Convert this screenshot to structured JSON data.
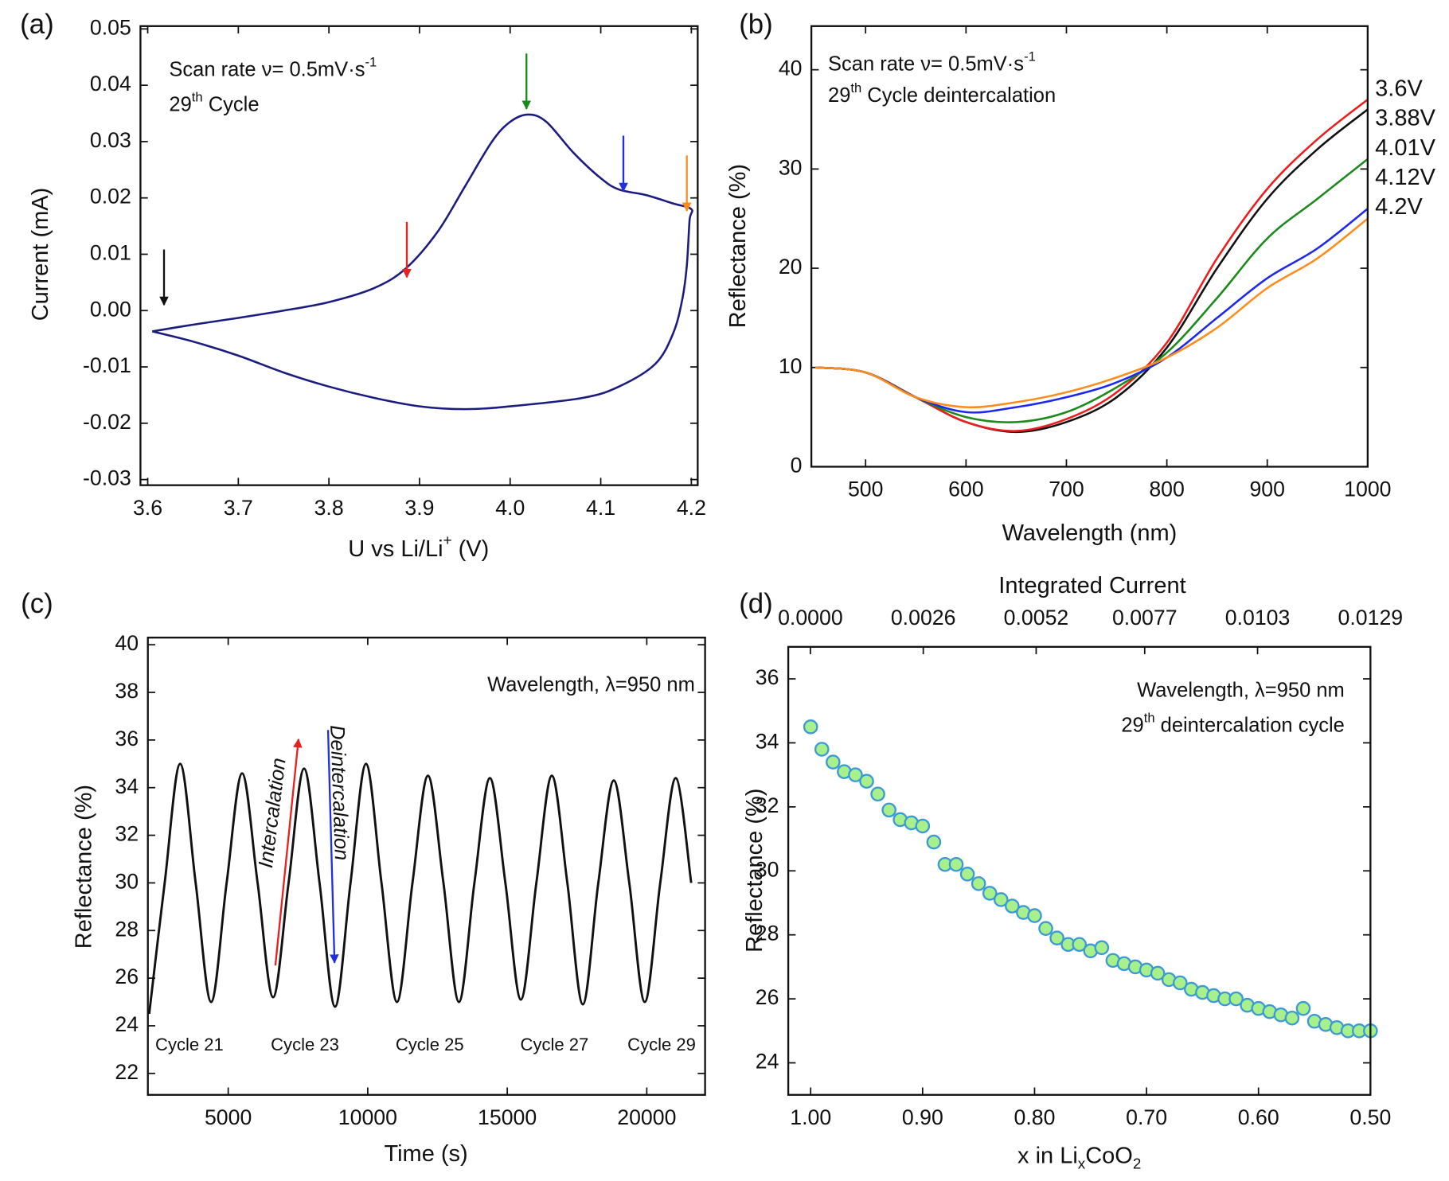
{
  "chart_data": [
    {
      "type": "line",
      "panel_label": "(a)",
      "xlabel": [
        {
          "text": "U vs Li/Li"
        },
        {
          "sup": "+"
        },
        {
          "text": " (V)"
        }
      ],
      "ylabel": "Current (mA)",
      "xlim": [
        3.592,
        4.207
      ],
      "ylim": [
        -0.031,
        0.0505
      ],
      "xticks": [
        3.6,
        3.7,
        3.8,
        3.9,
        {
          "value": 4.0,
          "label": "4.0"
        },
        4.1,
        4.2
      ],
      "yticks": [
        {
          "value": -0.03,
          "label": "-0.03"
        },
        {
          "value": -0.02,
          "label": "-0.02"
        },
        {
          "value": -0.01,
          "label": "-0.01"
        },
        {
          "value": 0,
          "label": "0.00"
        },
        0.01,
        0.02,
        0.03,
        0.04,
        0.05
      ],
      "annotations": [
        [
          {
            "text": "Scan rate ν= 0.5mV·s"
          },
          {
            "sup": "-1"
          }
        ],
        [
          {
            "text": "29"
          },
          {
            "sup": "th"
          },
          {
            "text": " Cycle"
          }
        ]
      ],
      "x": [
        3.605,
        3.65,
        3.7,
        3.75,
        3.8,
        3.85,
        3.885,
        3.92,
        3.95,
        3.98,
        4.0,
        4.02,
        4.04,
        4.07,
        4.1,
        4.12,
        4.15,
        4.18,
        4.2,
        4.198,
        4.195,
        4.19,
        4.18,
        4.16,
        4.12,
        4.08,
        4.0,
        3.95,
        3.9,
        3.85,
        3.8,
        3.75,
        3.7,
        3.65,
        3.605
      ],
      "series": [
        {
          "color": "#1c1c80",
          "values": [
            -0.0037,
            -0.0025,
            -0.0013,
            0.0,
            0.0015,
            0.004,
            0.0075,
            0.014,
            0.022,
            0.03,
            0.0335,
            0.0348,
            0.0335,
            0.028,
            0.0235,
            0.0215,
            0.0205,
            0.019,
            0.018,
            0.016,
            0.008,
            0.002,
            -0.004,
            -0.0095,
            -0.0135,
            -0.0155,
            -0.017,
            -0.0175,
            -0.017,
            -0.0155,
            -0.0135,
            -0.011,
            -0.008,
            -0.0055,
            -0.0037
          ]
        }
      ],
      "arrows": [
        {
          "x": 3.618,
          "y": 0.001,
          "color": "#111111"
        },
        {
          "x": 3.886,
          "y": 0.0059,
          "color": "#e82020"
        },
        {
          "x": 4.018,
          "y": 0.0358,
          "color": "#1a8a1a"
        },
        {
          "x": 4.125,
          "y": 0.0212,
          "color": "#2030e0"
        },
        {
          "x": 4.195,
          "y": 0.0177,
          "color": "#ff8c1a"
        }
      ]
    },
    {
      "type": "line",
      "panel_label": "(b)",
      "xlabel": "Wavelength (nm)",
      "ylabel": "Reflectance (%)",
      "xlim": [
        446,
        1000
      ],
      "ylim": [
        0,
        44.4
      ],
      "xticks": [
        500,
        600,
        700,
        800,
        900,
        1000
      ],
      "yticks": [
        0,
        10,
        20,
        30,
        40
      ],
      "annotations": [
        [
          {
            "text": "Scan rate ν= 0.5mV·s"
          },
          {
            "sup": "-1"
          }
        ],
        [
          {
            "text": "29"
          },
          {
            "sup": "th"
          },
          {
            "text": " Cycle deintercalation"
          }
        ]
      ],
      "x": [
        450,
        500,
        550,
        600,
        650,
        700,
        750,
        800,
        850,
        900,
        950,
        1000
      ],
      "series": [
        {
          "name": "3.6V",
          "color": "#111111",
          "values": [
            10,
            9.5,
            7,
            4.5,
            3.5,
            4.5,
            7,
            12,
            20,
            27,
            32,
            36
          ]
        },
        {
          "name": "3.88V",
          "color": "#ee1c1c",
          "values": [
            10,
            9.5,
            7,
            4.5,
            3.6,
            4.8,
            7.5,
            12.5,
            21,
            28,
            33,
            37
          ]
        },
        {
          "name": "4.01V",
          "color": "#1a8a1a",
          "values": [
            10,
            9.5,
            7,
            5,
            4.5,
            5.5,
            8,
            11.5,
            17,
            23,
            27,
            31
          ]
        },
        {
          "name": "4.12V",
          "color": "#1c28f0",
          "values": [
            10,
            9.5,
            7,
            5.5,
            6,
            7,
            8.5,
            11,
            15,
            19,
            22,
            26
          ]
        },
        {
          "name": "4.2V",
          "color": "#ff8c1a",
          "values": [
            10,
            9.5,
            7,
            6,
            6.5,
            7.5,
            9,
            11,
            14,
            18,
            21,
            25
          ]
        }
      ]
    },
    {
      "type": "line",
      "panel_label": "(c)",
      "xlabel": "Time (s)",
      "ylabel": "Reflectance (%)",
      "xlim": [
        2120,
        22090
      ],
      "ylim": [
        21.1,
        40.3
      ],
      "xticks": [
        5000,
        10000,
        15000,
        20000
      ],
      "yticks": [
        22,
        24,
        26,
        28,
        30,
        32,
        34,
        36,
        38,
        40
      ],
      "annotations": [
        [
          {
            "text": "Wavelength, λ=950 nm"
          }
        ]
      ],
      "arrow_labels": [
        {
          "text": "Intercalation",
          "color": "#e82020"
        },
        {
          "text": "Deintercalation",
          "color": "#2030e0"
        }
      ],
      "cycle_labels": [
        "Cycle 21",
        "Cycle 23",
        "Cycle 25",
        "Cycle 27",
        "Cycle 29"
      ],
      "x": [
        2168,
        2723,
        3278,
        3833,
        4388,
        4943,
        5498,
        6053,
        6608,
        7163,
        7718,
        8273,
        8828,
        9383,
        9938,
        10493,
        11048,
        11603,
        12158,
        12713,
        13268,
        13823,
        14378,
        14933,
        15488,
        16043,
        16598,
        17153,
        17708,
        18263,
        18818,
        19373,
        19928,
        20483,
        21038,
        21593
      ],
      "series": [
        {
          "color": "#111111",
          "values": [
            24.5,
            30,
            35.0,
            30,
            25.0,
            30,
            34.6,
            30,
            25.2,
            30,
            34.8,
            30,
            24.8,
            30,
            35.0,
            30,
            25.0,
            30,
            34.5,
            30,
            25.0,
            30,
            34.4,
            30,
            25.1,
            30,
            34.5,
            30,
            24.9,
            30,
            34.3,
            30,
            25.0,
            30,
            34.4,
            30
          ]
        }
      ]
    },
    {
      "type": "scatter",
      "panel_label": "(d)",
      "xlabel": [
        {
          "text": "x in Li"
        },
        {
          "sub": "x"
        },
        {
          "text": "CoO"
        },
        {
          "sub": "2"
        }
      ],
      "ylabel": "Reflectance (%)",
      "x2label": "Integrated Current",
      "xlim": [
        1.02,
        0.5
      ],
      "ylim": [
        23,
        37
      ],
      "x2lim": [
        -0.00051,
        0.0129
      ],
      "xticks": [
        {
          "value": 1.0,
          "label": "1.00"
        },
        {
          "value": 0.9,
          "label": "0.90"
        },
        {
          "value": 0.8,
          "label": "0.80"
        },
        {
          "value": 0.7,
          "label": "0.70"
        },
        {
          "value": 0.6,
          "label": "0.60"
        },
        {
          "value": 0.5,
          "label": "0.50"
        }
      ],
      "x2ticks": [
        {
          "value": 0,
          "label": "0.0000"
        },
        0.0026,
        0.0052,
        0.0077,
        0.0103,
        0.0129
      ],
      "yticks": [
        24,
        26,
        28,
        30,
        32,
        34,
        36
      ],
      "annotations": [
        [
          {
            "text": "Wavelength, λ=950 nm"
          }
        ],
        [
          {
            "text": "29"
          },
          {
            "sup": "th"
          },
          {
            "text": " deintercalation cycle"
          }
        ]
      ],
      "color": "#a8f08c",
      "edge_color": "#3a9ad8",
      "x": [
        1.0,
        0.99,
        0.98,
        0.97,
        0.96,
        0.95,
        0.94,
        0.93,
        0.92,
        0.91,
        0.9,
        0.89,
        0.88,
        0.87,
        0.86,
        0.85,
        0.84,
        0.83,
        0.82,
        0.81,
        0.8,
        0.79,
        0.78,
        0.77,
        0.76,
        0.75,
        0.74,
        0.73,
        0.72,
        0.71,
        0.7,
        0.69,
        0.68,
        0.67,
        0.66,
        0.65,
        0.64,
        0.63,
        0.62,
        0.61,
        0.6,
        0.59,
        0.58,
        0.57,
        0.56,
        0.55,
        0.54,
        0.53,
        0.52,
        0.51,
        0.5
      ],
      "values": [
        34.5,
        33.8,
        33.4,
        33.1,
        33.0,
        32.8,
        32.4,
        31.9,
        31.6,
        31.5,
        31.4,
        30.9,
        30.2,
        30.2,
        29.9,
        29.6,
        29.3,
        29.1,
        28.9,
        28.7,
        28.6,
        28.2,
        27.9,
        27.7,
        27.7,
        27.5,
        27.6,
        27.2,
        27.1,
        27.0,
        26.9,
        26.8,
        26.6,
        26.5,
        26.3,
        26.2,
        26.1,
        26.0,
        26.0,
        25.8,
        25.7,
        25.6,
        25.5,
        25.4,
        25.7,
        25.3,
        25.2,
        25.1,
        25.0,
        25.0,
        25.0
      ]
    }
  ]
}
